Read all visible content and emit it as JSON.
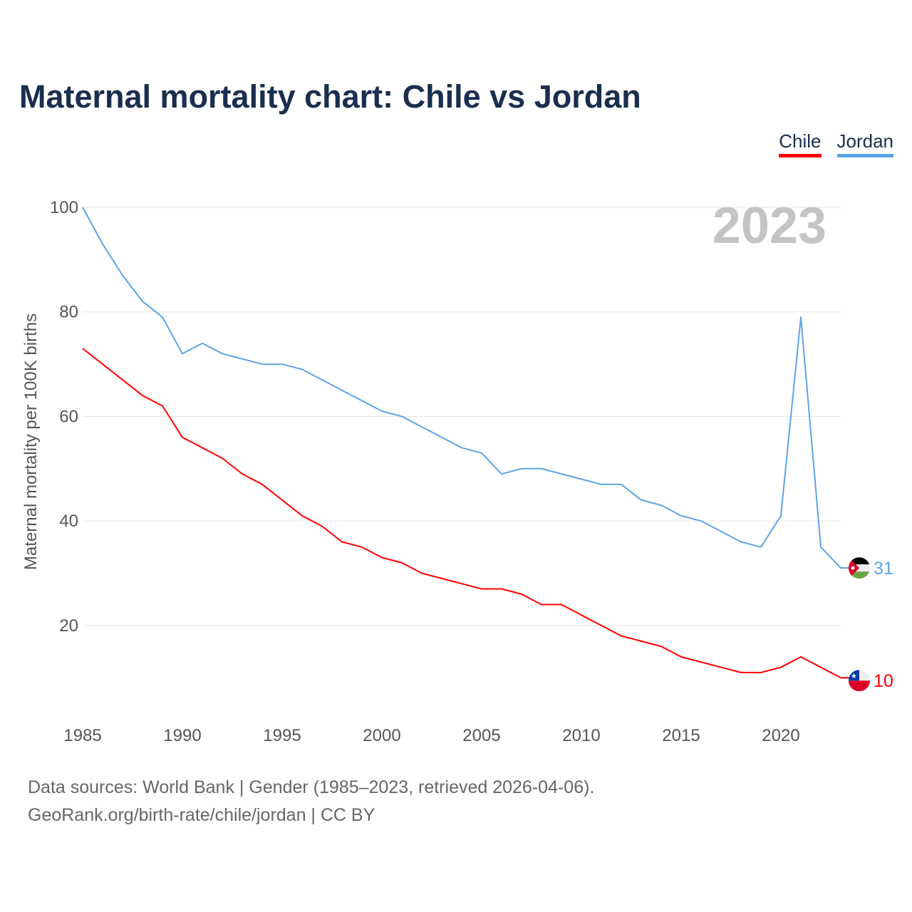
{
  "chart_data": {
    "type": "line",
    "title": "Maternal mortality chart: Chile vs Jordan",
    "ylabel": "Maternal mortality per 100K births",
    "xlabel": "",
    "year_label": "2023",
    "xlim": [
      1985,
      2023
    ],
    "ylim": [
      0,
      100
    ],
    "xticks": [
      1985,
      1990,
      1995,
      2000,
      2005,
      2010,
      2015,
      2020
    ],
    "yticks": [
      20,
      40,
      60,
      80,
      100
    ],
    "grid": true,
    "legend_position": "top-right",
    "x": [
      1985,
      1986,
      1987,
      1988,
      1989,
      1990,
      1991,
      1992,
      1993,
      1994,
      1995,
      1996,
      1997,
      1998,
      1999,
      2000,
      2001,
      2002,
      2003,
      2004,
      2005,
      2006,
      2007,
      2008,
      2009,
      2010,
      2011,
      2012,
      2013,
      2014,
      2015,
      2016,
      2017,
      2018,
      2019,
      2020,
      2021,
      2022,
      2023
    ],
    "series": [
      {
        "name": "Chile",
        "color": "#ff0000",
        "end_label": "10",
        "flag": "chile-flag",
        "values": [
          73,
          70,
          67,
          64,
          62,
          56,
          54,
          52,
          49,
          47,
          44,
          41,
          39,
          36,
          35,
          33,
          32,
          30,
          29,
          28,
          27,
          27,
          26,
          24,
          24,
          22,
          20,
          18,
          17,
          16,
          14,
          13,
          12,
          11,
          11,
          12,
          14,
          12,
          10
        ]
      },
      {
        "name": "Jordan",
        "color": "#5ba4ea",
        "end_label": "31",
        "flag": "jordan-flag",
        "values": [
          100,
          93,
          87,
          82,
          79,
          72,
          74,
          72,
          71,
          70,
          70,
          69,
          67,
          65,
          63,
          61,
          60,
          58,
          56,
          54,
          53,
          49,
          50,
          50,
          49,
          48,
          47,
          47,
          44,
          43,
          41,
          40,
          38,
          36,
          35,
          41,
          79,
          35,
          31
        ]
      }
    ]
  },
  "footer": {
    "line1": "Data sources: World Bank | Gender (1985–2023, retrieved 2026-04-06).",
    "line2": "GeoRank.org/birth-rate/chile/jordan | CC BY"
  }
}
